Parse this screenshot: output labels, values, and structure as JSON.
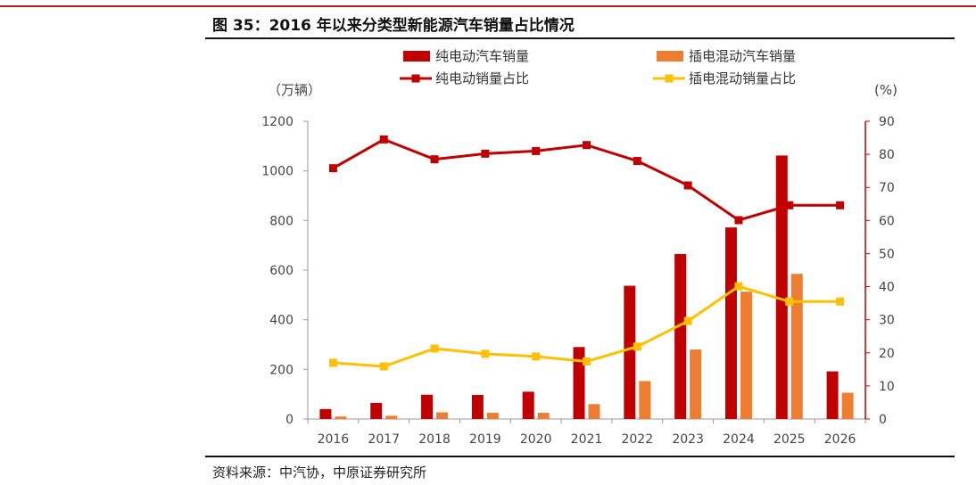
{
  "figure": {
    "title": "图 35：2016 年以来分类型新能源汽车销量占比情况",
    "source": "资料来源：中汽协，中原证券研究所"
  },
  "chart_data": {
    "type": "bar",
    "categories": [
      "2016",
      "2017",
      "2018",
      "2019",
      "2020",
      "2021",
      "2022",
      "2023",
      "2024",
      "2025",
      "2026"
    ],
    "left_axis": {
      "unit": "（万辆）",
      "ylim": [
        0,
        1200
      ],
      "ticks": [
        0,
        200,
        400,
        600,
        800,
        1000,
        1200
      ]
    },
    "right_axis": {
      "unit": "(%)",
      "ylim": [
        0,
        90
      ],
      "ticks": [
        0,
        10,
        20,
        30,
        40,
        50,
        60,
        70,
        80,
        90
      ]
    },
    "series": [
      {
        "name": "纯电动汽车销量",
        "kind": "bar",
        "axis": "left",
        "color": "#c00000",
        "values": [
          40,
          65,
          98,
          97,
          110,
          290,
          537,
          665,
          772,
          1062,
          192
        ]
      },
      {
        "name": "插电混动汽车销量",
        "kind": "bar",
        "axis": "left",
        "color": "#ed7d31",
        "values": [
          10,
          13,
          27,
          25,
          25,
          60,
          153,
          280,
          513,
          585,
          106
        ]
      },
      {
        "name": "纯电动销量占比",
        "kind": "line",
        "axis": "right",
        "color": "#c00000",
        "marker": "square",
        "values": [
          75.8,
          84.5,
          78.5,
          80.2,
          81.0,
          82.8,
          78.0,
          70.6,
          60.1,
          64.6,
          64.6
        ]
      },
      {
        "name": "插电混动销量占比",
        "kind": "line",
        "axis": "right",
        "color": "#ffc000",
        "marker": "square",
        "values": [
          17,
          15.9,
          21.3,
          19.7,
          18.9,
          17.4,
          21.9,
          29.6,
          40.1,
          35.5,
          35.5
        ]
      }
    ],
    "legend_position": "top",
    "grid": false
  }
}
